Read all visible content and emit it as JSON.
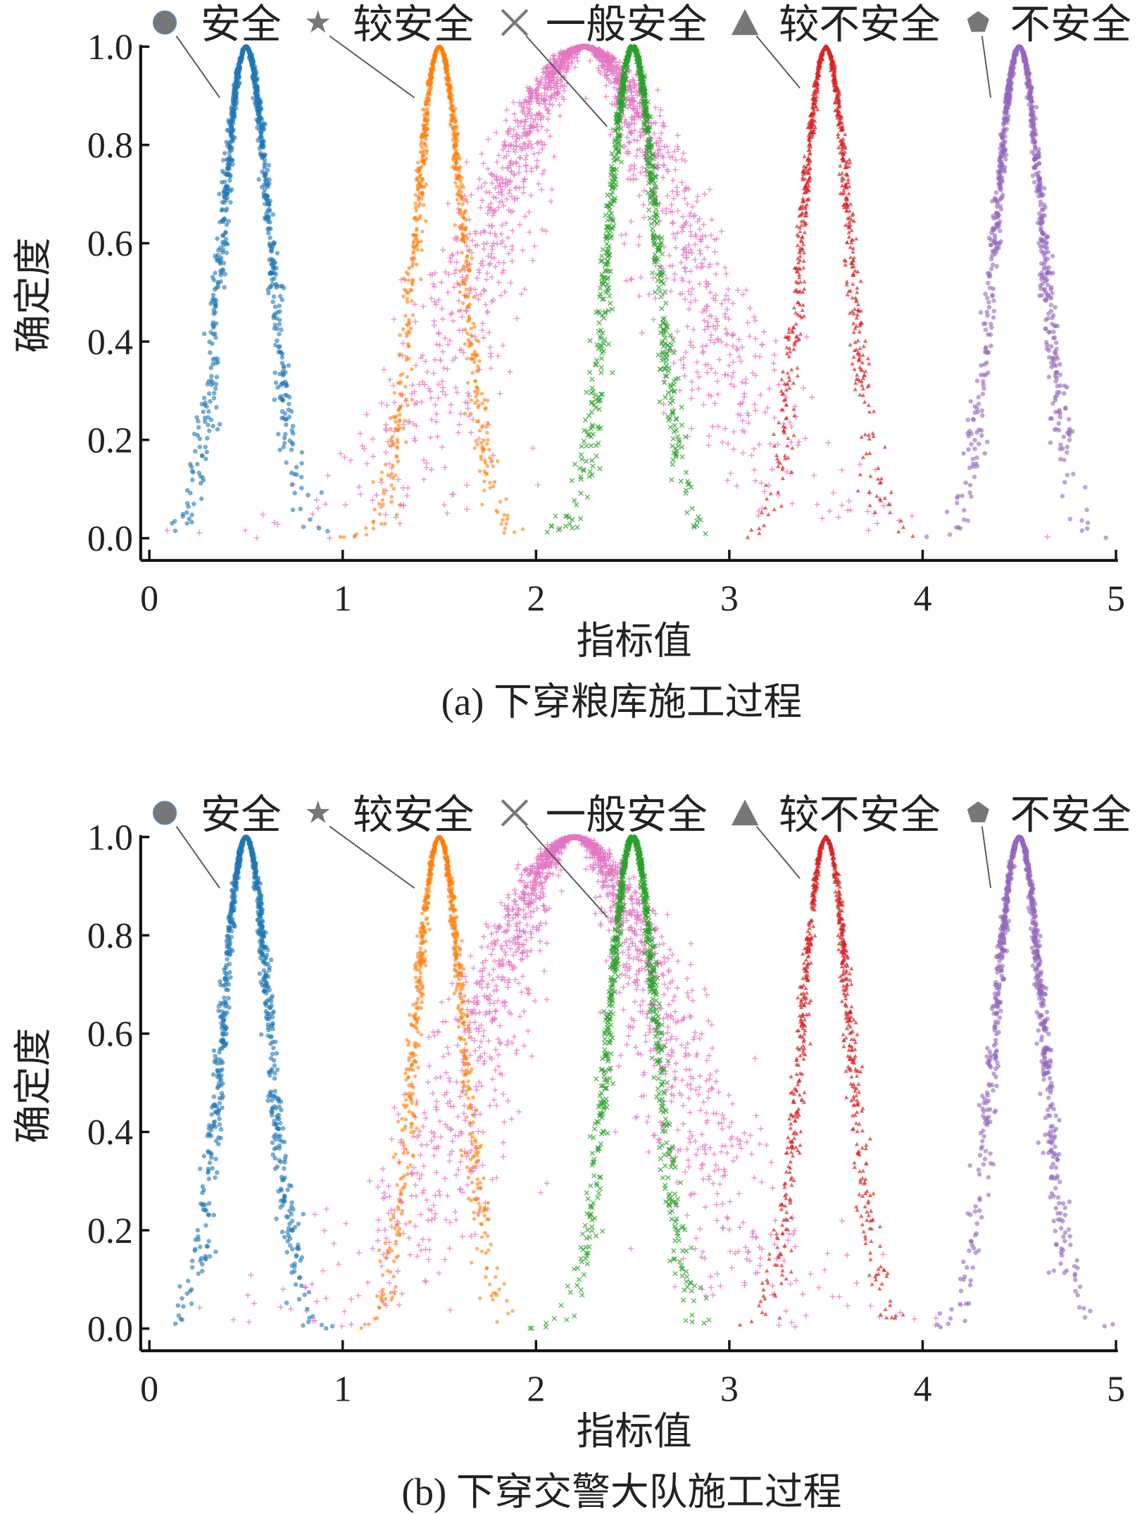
{
  "chart_data": [
    {
      "type": "scatter",
      "caption": "(a) 下穿粮库施工过程",
      "xlabel": "指标值",
      "ylabel": "确定度",
      "xlim": [
        0,
        5
      ],
      "ylim": [
        0,
        1
      ],
      "xticks": [
        "0",
        "1",
        "2",
        "3",
        "4",
        "5"
      ],
      "yticks": [
        "0.0",
        "0.2",
        "0.4",
        "0.6",
        "0.8",
        "1.0"
      ],
      "legend_placement": "top",
      "series": [
        {
          "name": "安全",
          "marker": "circle",
          "color": "#1f77b4",
          "Ex": 0.5,
          "En": 0.125,
          "He": 0.015,
          "count": 900
        },
        {
          "name": "较安全",
          "marker": "star",
          "color": "#ff7f0e",
          "Ex": 1.5,
          "En": 0.125,
          "He": 0.015,
          "count": 900
        },
        {
          "name": "一般安全",
          "marker": "x",
          "color": "#2ca02c",
          "Ex": 2.5,
          "En": 0.125,
          "He": 0.015,
          "count": 900
        },
        {
          "name": "较不安全",
          "marker": "triangle",
          "color": "#d62728",
          "Ex": 3.5,
          "En": 0.125,
          "He": 0.015,
          "count": 900
        },
        {
          "name": "不安全",
          "marker": "pentagon",
          "color": "#9467bd",
          "Ex": 4.5,
          "En": 0.125,
          "He": 0.015,
          "count": 900
        },
        {
          "name": "",
          "marker": "plus",
          "color": "#e377c2",
          "Ex": 2.25,
          "En": 0.5,
          "He": 0.12,
          "count": 1800
        }
      ]
    },
    {
      "type": "scatter",
      "caption": "(b) 下穿交警大队施工过程",
      "xlabel": "指标值",
      "ylabel": "确定度",
      "xlim": [
        0,
        5
      ],
      "ylim": [
        0,
        1
      ],
      "xticks": [
        "0",
        "1",
        "2",
        "3",
        "4",
        "5"
      ],
      "yticks": [
        "0.0",
        "0.2",
        "0.4",
        "0.6",
        "0.8",
        "1.0"
      ],
      "legend_placement": "top",
      "series": [
        {
          "name": "安全",
          "marker": "circle",
          "color": "#1f77b4",
          "Ex": 0.5,
          "En": 0.125,
          "He": 0.015,
          "count": 900
        },
        {
          "name": "较安全",
          "marker": "star",
          "color": "#ff7f0e",
          "Ex": 1.5,
          "En": 0.125,
          "He": 0.015,
          "count": 900
        },
        {
          "name": "一般安全",
          "marker": "x",
          "color": "#2ca02c",
          "Ex": 2.5,
          "En": 0.125,
          "He": 0.015,
          "count": 900
        },
        {
          "name": "较不安全",
          "marker": "triangle",
          "color": "#d62728",
          "Ex": 3.5,
          "En": 0.125,
          "He": 0.015,
          "count": 900
        },
        {
          "name": "不安全",
          "marker": "pentagon",
          "color": "#9467bd",
          "Ex": 4.5,
          "En": 0.125,
          "He": 0.015,
          "count": 900
        },
        {
          "name": "",
          "marker": "plus",
          "color": "#e377c2",
          "Ex": 2.2,
          "En": 0.48,
          "He": 0.12,
          "count": 1800
        }
      ]
    }
  ]
}
